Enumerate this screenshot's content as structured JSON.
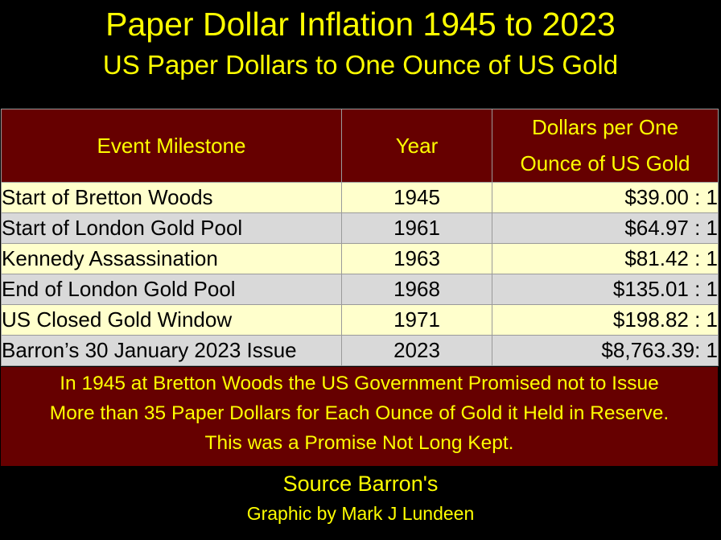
{
  "chart_data": {
    "type": "table",
    "title": "Paper Dollar Inflation 1945 to 2023",
    "subtitle": "US Paper Dollars to One Ounce of US Gold",
    "columns": [
      "Event Milestone",
      "Year",
      "Dollars per One Ounce of US Gold"
    ],
    "header_lines": {
      "col3_line1": "Dollars per One",
      "col3_line2": "Ounce of US Gold"
    },
    "rows": [
      {
        "event": "Start of Bretton Woods",
        "year": "1945",
        "ratio": "$39.00 : 1"
      },
      {
        "event": "Start of London Gold Pool",
        "year": "1961",
        "ratio": "$64.97 : 1"
      },
      {
        "event": "Kennedy Assassination",
        "year": "1963",
        "ratio": "$81.42 : 1"
      },
      {
        "event": "End of London Gold Pool",
        "year": "1968",
        "ratio": "$135.01 : 1"
      },
      {
        "event": "US Closed Gold Window",
        "year": "1971",
        "ratio": "$198.82 : 1"
      },
      {
        "event": "Barron’s 30 January 2023 Issue",
        "year": "2023",
        "ratio": "$8,763.39: 1"
      }
    ],
    "values": [
      39.0,
      64.97,
      81.42,
      135.01,
      198.82,
      8763.39
    ],
    "note_lines": [
      "In 1945 at Bretton Woods the US Government Promised not to Issue",
      "More than 35 Paper Dollars for Each Ounce of Gold it Held in Reserve.",
      "This was a Promise Not Long Kept."
    ],
    "source": "Source Barron's",
    "credit": "Graphic by Mark J Lundeen"
  },
  "colors": {
    "background": "#000000",
    "text_accent": "#ffff00",
    "header_fill": "#660000",
    "row_odd": "#ffffcc",
    "row_even": "#d9d9d9"
  }
}
